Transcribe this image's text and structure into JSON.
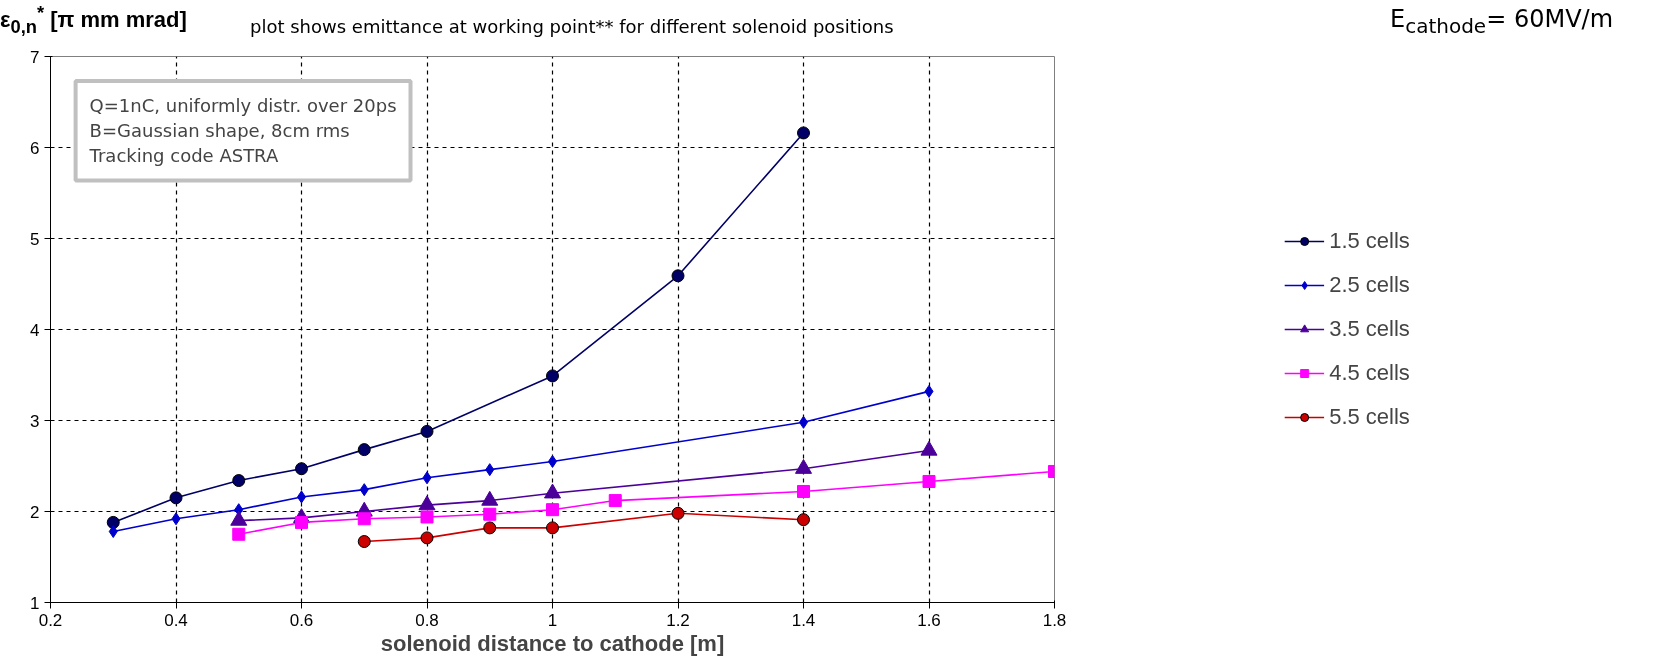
{
  "chart_data": {
    "type": "line",
    "title": "plot shows emittance at working point** for different solenoid positions",
    "xlabel": "solenoid distance to cathode [m]",
    "ylabel": "ε$_{0,n}$$^{*}$ [π mm mrad]",
    "annotations": [
      "Q=1nC, uniformly distr. over 20ps\nB=Gaussian shape, 8cm rms\nTracking code ASTRA",
      "E$_{cathode}$= 60MV/m"
    ],
    "xlim": [
      0.2,
      1.8
    ],
    "xticks": [
      0.2,
      0.4,
      0.6,
      0.8,
      1,
      1.2,
      1.4,
      1.6,
      1.8
    ],
    "ylim": [
      1,
      7
    ],
    "yticks": [
      1,
      2,
      3,
      4,
      5,
      6,
      7
    ],
    "grid": true,
    "legend": "right",
    "line_style": "solid",
    "series": [
      {
        "name": "1.5 cells",
        "color": "#000066",
        "marker": "circle",
        "x": [
          0.3,
          0.4,
          0.5,
          0.6,
          0.7,
          0.8,
          1.0,
          1.2,
          1.4
        ],
        "values": [
          1.88,
          2.15,
          2.34,
          2.47,
          2.68,
          2.88,
          3.49,
          4.59,
          6.16
        ]
      },
      {
        "name": "2.5 cells",
        "color": "#0000cc",
        "marker": "diamond",
        "x": [
          0.3,
          0.4,
          0.5,
          0.6,
          0.7,
          0.8,
          0.9,
          1.0,
          1.4,
          1.6
        ],
        "values": [
          1.78,
          1.92,
          2.02,
          2.16,
          2.24,
          2.37,
          2.46,
          2.55,
          2.98,
          3.32
        ]
      },
      {
        "name": "3.5 cells",
        "color": "#4b0099",
        "marker": "triangle",
        "x": [
          0.5,
          0.6,
          0.7,
          0.8,
          0.9,
          1.0,
          1.4,
          1.6
        ],
        "values": [
          1.9,
          1.93,
          2.0,
          2.07,
          2.12,
          2.2,
          2.47,
          2.67
        ]
      },
      {
        "name": "4.5 cells",
        "color": "#ff00ff",
        "marker": "square",
        "x": [
          0.5,
          0.6,
          0.7,
          0.8,
          0.9,
          1.0,
          1.1,
          1.4,
          1.6,
          1.8
        ],
        "values": [
          1.75,
          1.88,
          1.92,
          1.94,
          1.97,
          2.02,
          2.12,
          2.22,
          2.33,
          2.44
        ]
      },
      {
        "name": "5.5 cells",
        "color": "#cc0000",
        "marker": "circle",
        "x": [
          0.7,
          0.8,
          0.9,
          1.0,
          1.2,
          1.4
        ],
        "values": [
          1.67,
          1.71,
          1.82,
          1.82,
          1.98,
          1.91
        ]
      }
    ]
  }
}
